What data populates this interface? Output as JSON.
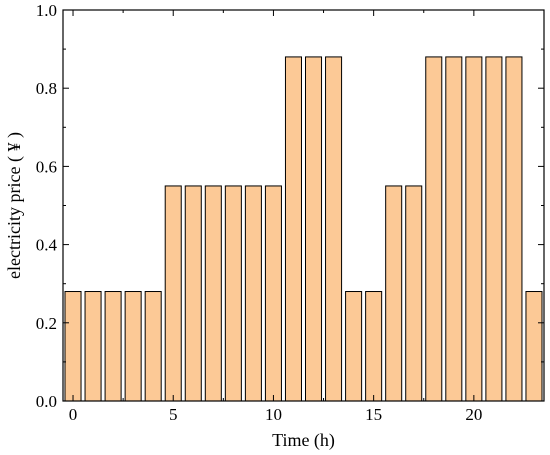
{
  "chart_data": {
    "type": "bar",
    "xlabel": "Time (h)",
    "ylabel": "electricity price ( ¥ )",
    "xlim": [
      -0.5,
      23.5
    ],
    "ylim": [
      0,
      1.0
    ],
    "x_ticks": [
      0,
      5,
      10,
      15,
      20
    ],
    "y_ticks": [
      0.0,
      0.2,
      0.4,
      0.6,
      0.8,
      1.0
    ],
    "y_tick_labels": [
      "0.0",
      "0.2",
      "0.4",
      "0.6",
      "0.8",
      "1.0"
    ],
    "grid": false,
    "legend": "none",
    "bar_color": "#FCC996",
    "bar_edge_color": "#000000",
    "categories": [
      0,
      1,
      2,
      3,
      4,
      5,
      6,
      7,
      8,
      9,
      10,
      11,
      12,
      13,
      14,
      15,
      16,
      17,
      18,
      19,
      20,
      21,
      22,
      23
    ],
    "values": [
      0.28,
      0.28,
      0.28,
      0.28,
      0.28,
      0.55,
      0.55,
      0.55,
      0.55,
      0.55,
      0.55,
      0.88,
      0.88,
      0.88,
      0.28,
      0.28,
      0.55,
      0.55,
      0.88,
      0.88,
      0.88,
      0.88,
      0.88,
      0.28
    ]
  }
}
